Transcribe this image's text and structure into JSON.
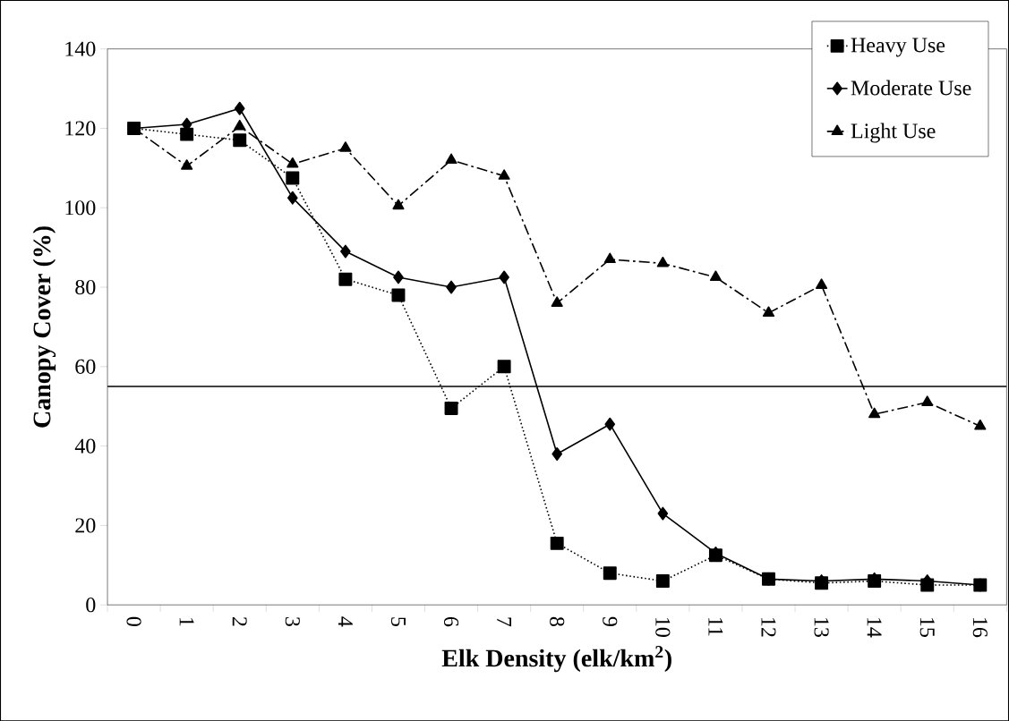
{
  "chart_data": {
    "type": "line",
    "xlabel": "Elk Density (elk/km$^{2}$)",
    "ylabel": "Canopy Cover (%)",
    "categories": [
      "0",
      "1",
      "2",
      "3",
      "4",
      "5",
      "6",
      "7",
      "8",
      "9",
      "10",
      "11",
      "12",
      "13",
      "14",
      "15",
      "16"
    ],
    "series": [
      {
        "name": "Heavy Use",
        "color": "#000000",
        "marker": "square",
        "line_style": "dotted",
        "values": [
          120,
          118.5,
          117,
          107.5,
          82,
          78,
          49.5,
          60,
          15.5,
          8,
          6,
          12.5,
          6.5,
          5.5,
          6,
          5,
          5
        ]
      },
      {
        "name": "Moderate Use",
        "color": "#000000",
        "marker": "diamond",
        "line_style": "solid",
        "values": [
          120,
          121,
          125,
          102.5,
          89,
          82.5,
          80,
          82.5,
          38,
          45.5,
          23,
          13,
          6.5,
          6,
          6.5,
          6,
          5
        ]
      },
      {
        "name": "Light Use",
        "color": "#000000",
        "marker": "triangle",
        "line_style": "dashdot",
        "values": [
          120,
          110.5,
          120.5,
          111,
          115,
          100.5,
          112,
          108,
          76,
          87,
          86,
          82.5,
          73.5,
          80.5,
          48,
          51,
          45
        ]
      }
    ],
    "ylim": [
      0,
      140
    ],
    "yticks": [
      0,
      20,
      40,
      60,
      80,
      100,
      120,
      140
    ],
    "ref_lines": [
      {
        "axis": "y",
        "value": 55,
        "color": "#000000"
      }
    ],
    "grid": false,
    "legend": "top right"
  }
}
